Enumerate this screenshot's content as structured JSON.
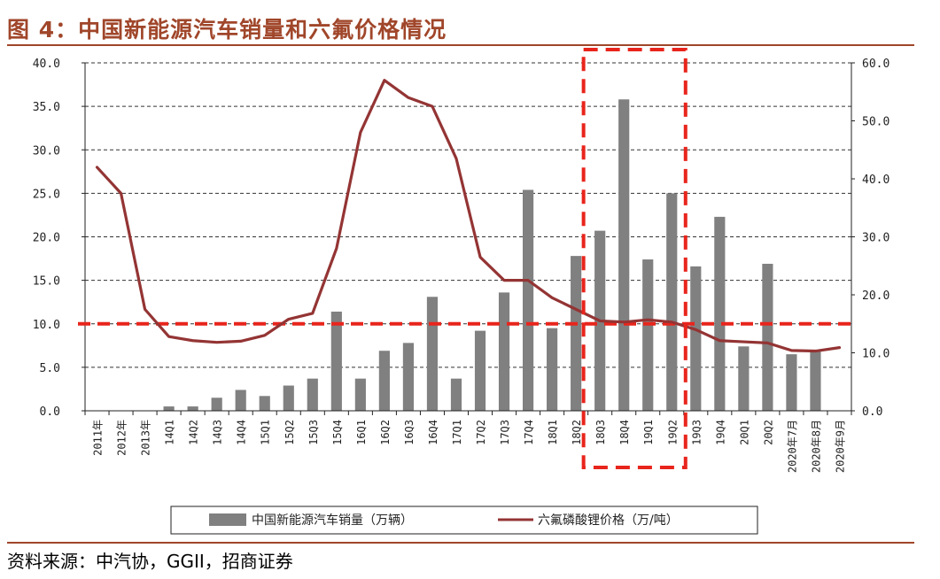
{
  "title": "图 4：中国新能源汽车销量和六氟价格情况",
  "source": {
    "label": "资料来源：",
    "text": "中汽协，GGII，招商证券"
  },
  "colors": {
    "bar": "#808080",
    "line": "#943434",
    "highlight": "#e8251c",
    "title": "#a0462a"
  },
  "chart_data": {
    "type": "bar+line",
    "categories": [
      "2011年",
      "2012年",
      "2013年",
      "14Q1",
      "14Q2",
      "14Q3",
      "14Q4",
      "15Q1",
      "15Q2",
      "15Q3",
      "15Q4",
      "16Q1",
      "16Q2",
      "16Q3",
      "16Q4",
      "17Q1",
      "17Q2",
      "17Q3",
      "17Q4",
      "18Q1",
      "18Q2",
      "18Q3",
      "18Q4",
      "19Q1",
      "19Q2",
      "19Q3",
      "19Q4",
      "20Q1",
      "20Q2",
      "2020年7月",
      "2020年8月",
      "2020年9月"
    ],
    "series": [
      {
        "name": "中国新能源汽车销量（万辆）",
        "type": "bar",
        "axis": "left",
        "values": [
          0,
          0,
          0,
          0.5,
          0.5,
          1.5,
          2.4,
          1.7,
          2.9,
          3.7,
          11.4,
          3.7,
          6.9,
          7.8,
          13.1,
          3.7,
          9.2,
          13.6,
          25.4,
          9.5,
          17.8,
          20.7,
          35.8,
          17.4,
          25.0,
          16.6,
          22.3,
          7.4,
          16.9,
          6.5,
          7.0,
          0
        ],
        "pattern": "solid"
      },
      {
        "name": "六氟磷酸锂价格（万/吨）",
        "type": "line",
        "axis": "right",
        "values": [
          42.0,
          37.5,
          17.5,
          12.8,
          12.1,
          11.8,
          12.0,
          13.0,
          15.8,
          16.8,
          28.0,
          48.0,
          57.0,
          54.0,
          52.5,
          43.5,
          26.5,
          22.5,
          22.5,
          19.5,
          17.5,
          15.5,
          15.3,
          15.7,
          15.3,
          14.0,
          12.1,
          11.9,
          11.7,
          10.4,
          10.3,
          10.9
        ]
      }
    ],
    "y_left": {
      "min": 0,
      "max": 40,
      "step": 5,
      "tick_labels": [
        "0.0",
        "5.0",
        "10.0",
        "15.0",
        "20.0",
        "25.0",
        "30.0",
        "35.0",
        "40.0"
      ]
    },
    "y_right": {
      "min": 0,
      "max": 60,
      "step": 10,
      "tick_labels": [
        "0.0",
        "10.0",
        "20.0",
        "30.0",
        "40.0",
        "50.0",
        "60.0"
      ]
    },
    "reference_line": {
      "axis": "left",
      "value": 10,
      "style": "dashed"
    },
    "highlight_box": {
      "from": "18Q3",
      "to": "19Q2",
      "style": "dashed"
    },
    "grid": "horizontal-dashed",
    "legend": {
      "position": "bottom"
    }
  }
}
